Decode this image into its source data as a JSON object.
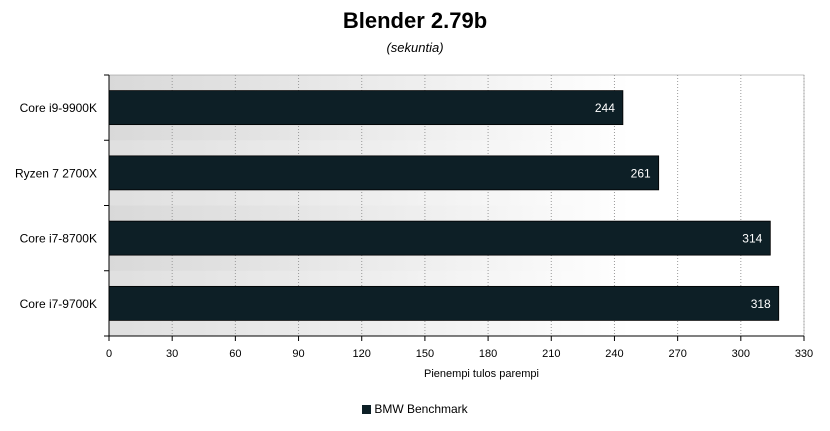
{
  "chart_data": {
    "type": "bar",
    "orientation": "horizontal",
    "title": "Blender 2.79b",
    "subtitle": "(sekuntia)",
    "xlabel": "Pienempi tulos parempi",
    "ylabel": "",
    "categories": [
      "Core i9-9900K",
      "Ryzen 7 2700X",
      "Core i7-8700K",
      "Core i7-9700K"
    ],
    "series": [
      {
        "name": "BMW Benchmark",
        "values": [
          244,
          261,
          314,
          318
        ]
      }
    ],
    "xlim": [
      0,
      330
    ],
    "ticks": [
      0,
      30,
      60,
      90,
      120,
      150,
      180,
      210,
      240,
      270,
      300,
      330
    ],
    "tick_labels": [
      "0",
      "30",
      "60",
      "90",
      "120",
      "150",
      "180",
      "210",
      "240",
      "270",
      "300",
      "330"
    ],
    "data_labels": [
      "244",
      "261",
      "314",
      "318"
    ],
    "grid": true,
    "legend_position": "bottom",
    "colors": {
      "bar": "#0d1f26",
      "plot_bg_dark": "#dcdcdc",
      "plot_bg_light": "#ffffff",
      "grid": "#9a9a9a"
    }
  }
}
